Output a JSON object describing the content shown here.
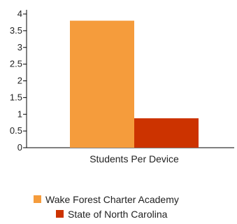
{
  "chart_data": {
    "type": "bar",
    "categories": [
      "Students Per Device"
    ],
    "series": [
      {
        "name": "Wake Forest Charter Academy",
        "values": [
          3.8
        ],
        "color": "#f59c3c"
      },
      {
        "name": "State of North Carolina",
        "values": [
          0.88
        ],
        "color": "#cc3300"
      }
    ],
    "ylim": [
      0,
      4
    ],
    "yticks": [
      "0",
      "0.5",
      "1",
      "1.5",
      "2",
      "2.5",
      "3",
      "3.5",
      "4"
    ],
    "grid": false,
    "legend_position": "bottom"
  }
}
